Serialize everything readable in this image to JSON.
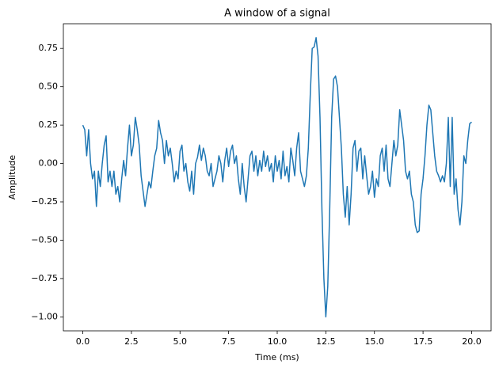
{
  "chart_data": {
    "type": "line",
    "title": "A window of a signal",
    "xlabel": "Time (ms)",
    "ylabel": "Amplitude",
    "color": "#1f77b4",
    "xlim": [
      -1,
      21
    ],
    "ylim": [
      -1.091,
      0.911
    ],
    "xticks": [
      {
        "value": 0,
        "label": "0.0"
      },
      {
        "value": 2.5,
        "label": "2.5"
      },
      {
        "value": 5,
        "label": "5.0"
      },
      {
        "value": 7.5,
        "label": "7.5"
      },
      {
        "value": 10,
        "label": "10.0"
      },
      {
        "value": 12.5,
        "label": "12.5"
      },
      {
        "value": 15,
        "label": "15.0"
      },
      {
        "value": 17.5,
        "label": "17.5"
      },
      {
        "value": 20,
        "label": "20.0"
      }
    ],
    "yticks": [
      {
        "value": -1,
        "label": "−1.00"
      },
      {
        "value": -0.75,
        "label": "−0.75"
      },
      {
        "value": -0.5,
        "label": "−0.50"
      },
      {
        "value": -0.25,
        "label": "−0.25"
      },
      {
        "value": 0,
        "label": "0.00"
      },
      {
        "value": 0.25,
        "label": "0.25"
      },
      {
        "value": 0.5,
        "label": "0.50"
      },
      {
        "value": 0.75,
        "label": "0.75"
      }
    ],
    "x": [
      0,
      0.1,
      0.2,
      0.3,
      0.4,
      0.5,
      0.6,
      0.7,
      0.8,
      0.9,
      1,
      1.1,
      1.2,
      1.3,
      1.4,
      1.5,
      1.6,
      1.7,
      1.8,
      1.9,
      2,
      2.1,
      2.2,
      2.3,
      2.4,
      2.5,
      2.6,
      2.7,
      2.8,
      2.9,
      3,
      3.1,
      3.2,
      3.3,
      3.4,
      3.5,
      3.6,
      3.7,
      3.8,
      3.9,
      4,
      4.1,
      4.2,
      4.3,
      4.4,
      4.5,
      4.6,
      4.7,
      4.8,
      4.9,
      5,
      5.1,
      5.2,
      5.3,
      5.4,
      5.5,
      5.6,
      5.7,
      5.8,
      5.9,
      6,
      6.1,
      6.2,
      6.3,
      6.4,
      6.5,
      6.6,
      6.7,
      6.8,
      6.9,
      7,
      7.1,
      7.2,
      7.3,
      7.4,
      7.5,
      7.6,
      7.7,
      7.8,
      7.9,
      8,
      8.1,
      8.2,
      8.3,
      8.4,
      8.5,
      8.6,
      8.7,
      8.8,
      8.9,
      9,
      9.1,
      9.2,
      9.3,
      9.4,
      9.5,
      9.6,
      9.7,
      9.8,
      9.9,
      10,
      10.1,
      10.2,
      10.3,
      10.4,
      10.5,
      10.6,
      10.7,
      10.8,
      10.9,
      11,
      11.1,
      11.2,
      11.3,
      11.4,
      11.5,
      11.6,
      11.7,
      11.8,
      11.9,
      12,
      12.1,
      12.2,
      12.3,
      12.4,
      12.5,
      12.6,
      12.7,
      12.8,
      12.9,
      13,
      13.1,
      13.2,
      13.3,
      13.4,
      13.5,
      13.6,
      13.7,
      13.8,
      13.9,
      14,
      14.1,
      14.2,
      14.3,
      14.4,
      14.5,
      14.6,
      14.7,
      14.8,
      14.9,
      15,
      15.1,
      15.2,
      15.3,
      15.4,
      15.5,
      15.6,
      15.7,
      15.8,
      15.9,
      16,
      16.1,
      16.2,
      16.3,
      16.4,
      16.5,
      16.6,
      16.7,
      16.8,
      16.9,
      17,
      17.1,
      17.2,
      17.3,
      17.4,
      17.5,
      17.6,
      17.7,
      17.8,
      17.9,
      18,
      18.1,
      18.2,
      18.3,
      18.4,
      18.5,
      18.6,
      18.7,
      18.8,
      18.9,
      19,
      19.1,
      19.2,
      19.3,
      19.4,
      19.5,
      19.6,
      19.7,
      19.8,
      19.9,
      20
    ],
    "values": [
      0.25,
      0.22,
      0.05,
      0.22,
      0.0,
      -0.1,
      -0.05,
      -0.28,
      -0.05,
      -0.15,
      0.0,
      0.12,
      0.18,
      -0.12,
      -0.05,
      -0.15,
      -0.05,
      -0.2,
      -0.15,
      -0.25,
      -0.1,
      0.02,
      -0.08,
      0.1,
      0.25,
      0.05,
      0.12,
      0.3,
      0.22,
      0.12,
      -0.08,
      -0.18,
      -0.28,
      -0.2,
      -0.12,
      -0.16,
      -0.05,
      0.05,
      0.1,
      0.28,
      0.2,
      0.15,
      0.0,
      0.15,
      0.05,
      0.1,
      0.0,
      -0.12,
      -0.05,
      -0.1,
      0.08,
      0.12,
      -0.05,
      0.0,
      -0.12,
      -0.18,
      -0.05,
      -0.2,
      0.0,
      0.04,
      0.12,
      0.02,
      0.1,
      0.05,
      -0.05,
      -0.08,
      0.0,
      -0.15,
      -0.1,
      -0.05,
      0.05,
      0.0,
      -0.12,
      0.02,
      0.1,
      -0.02,
      0.08,
      0.12,
      0.0,
      0.05,
      -0.1,
      -0.2,
      0.0,
      -0.15,
      -0.25,
      -0.1,
      0.05,
      0.08,
      -0.05,
      0.05,
      -0.08,
      0.02,
      -0.05,
      0.08,
      -0.02,
      0.05,
      -0.05,
      0.0,
      -0.12,
      0.05,
      -0.05,
      0.02,
      -0.1,
      0.08,
      -0.08,
      -0.02,
      -0.12,
      0.1,
      0.02,
      -0.08,
      0.1,
      0.2,
      -0.05,
      -0.1,
      -0.15,
      -0.08,
      0.1,
      0.45,
      0.75,
      0.76,
      0.82,
      0.7,
      0.3,
      -0.3,
      -0.75,
      -1.0,
      -0.8,
      -0.3,
      0.3,
      0.55,
      0.57,
      0.5,
      0.3,
      0.1,
      -0.2,
      -0.35,
      -0.15,
      -0.4,
      -0.2,
      0.1,
      0.15,
      -0.05,
      0.08,
      0.1,
      -0.1,
      0.05,
      -0.08,
      -0.2,
      -0.15,
      -0.05,
      -0.22,
      -0.1,
      -0.15,
      0.05,
      0.1,
      -0.05,
      0.12,
      -0.1,
      -0.15,
      0.0,
      0.15,
      0.05,
      0.12,
      0.35,
      0.25,
      0.15,
      -0.05,
      -0.1,
      -0.05,
      -0.2,
      -0.25,
      -0.4,
      -0.45,
      -0.44,
      -0.2,
      -0.1,
      0.05,
      0.25,
      0.38,
      0.35,
      0.2,
      0.05,
      -0.05,
      -0.08,
      -0.12,
      -0.08,
      -0.12,
      0.0,
      0.3,
      -0.15,
      0.3,
      -0.2,
      -0.1,
      -0.3,
      -0.4,
      -0.25,
      0.05,
      0.0,
      0.15,
      0.26,
      0.27
    ]
  }
}
